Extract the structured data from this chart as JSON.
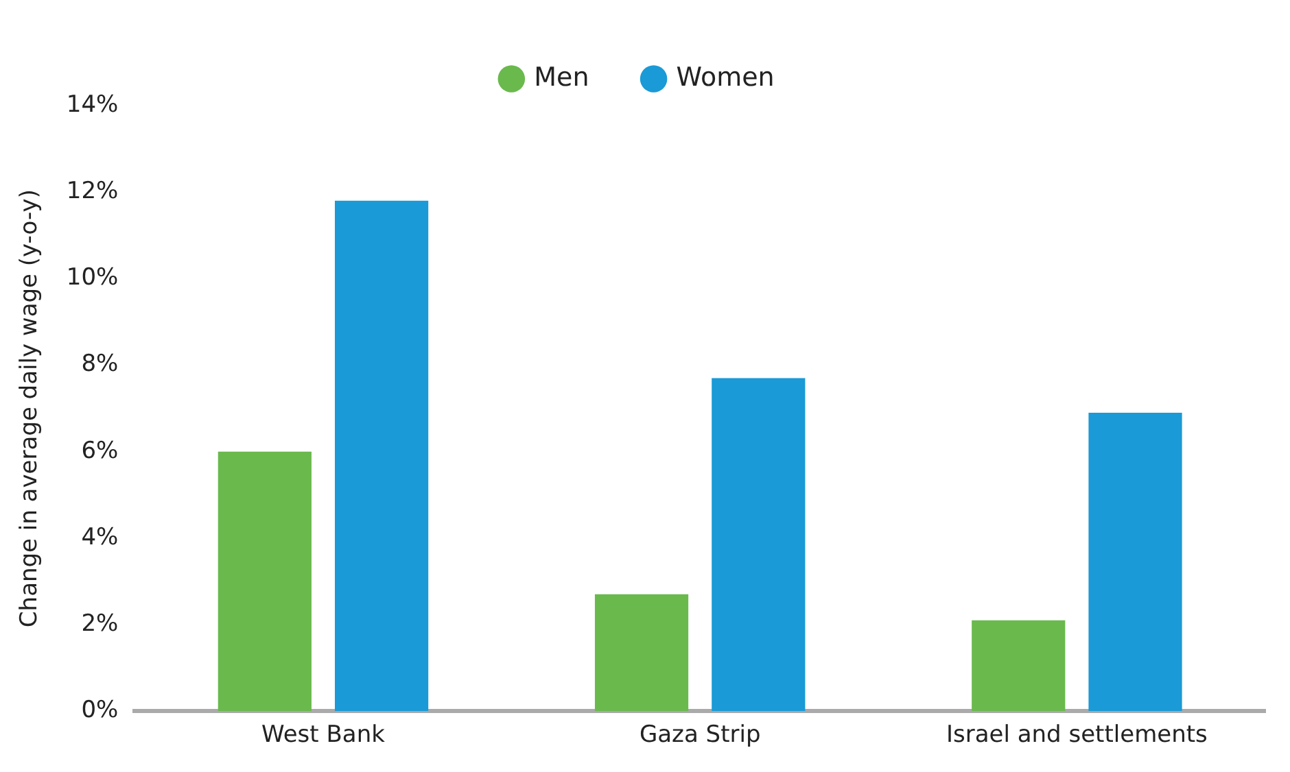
{
  "chart_data": {
    "type": "bar",
    "ylabel": "Change in average daily wage (y-o-y)",
    "categories": [
      "West Bank",
      "Gaza Strip",
      "Israel and settlements"
    ],
    "series": [
      {
        "name": "Men",
        "color": "#6ab94d",
        "values": [
          6.0,
          2.7,
          2.1
        ]
      },
      {
        "name": "Women",
        "color": "#1a9ad6",
        "values": [
          11.8,
          7.7,
          6.9
        ]
      }
    ],
    "ylim": [
      0,
      14
    ],
    "yticks": [
      {
        "value": 0,
        "label": "0%"
      },
      {
        "value": 2,
        "label": "2%"
      },
      {
        "value": 4,
        "label": "4%"
      },
      {
        "value": 6,
        "label": "6%"
      },
      {
        "value": 8,
        "label": "8%"
      },
      {
        "value": 10,
        "label": "10%"
      },
      {
        "value": 12,
        "label": "12%"
      },
      {
        "value": 14,
        "label": "14%"
      }
    ],
    "legend": "top"
  }
}
